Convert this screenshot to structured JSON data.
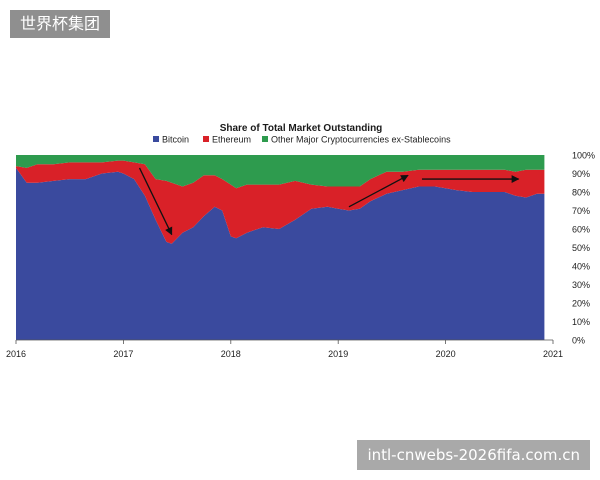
{
  "watermarks": {
    "top": "世界杯集团",
    "bottom": "intl-cnwebs-2026fifa.com.cn"
  },
  "chart_data": {
    "type": "area",
    "title": "Share of Total Market Outstanding",
    "stacked": true,
    "x": [
      2016.0,
      2016.1,
      2016.2,
      2016.35,
      2016.5,
      2016.65,
      2016.8,
      2016.95,
      2017.0,
      2017.1,
      2017.2,
      2017.3,
      2017.4,
      2017.45,
      2017.55,
      2017.65,
      2017.75,
      2017.85,
      2017.92,
      2018.0,
      2018.05,
      2018.15,
      2018.3,
      2018.45,
      2018.6,
      2018.75,
      2018.9,
      2019.0,
      2019.1,
      2019.2,
      2019.3,
      2019.45,
      2019.6,
      2019.75,
      2019.9,
      2020.0,
      2020.1,
      2020.25,
      2020.4,
      2020.55,
      2020.65,
      2020.75,
      2020.85,
      2020.92
    ],
    "series": [
      {
        "name": "Bitcoin",
        "color": "#3a4a9e",
        "values": [
          93,
          85,
          85,
          86,
          87,
          87,
          90,
          91,
          90,
          87,
          78,
          65,
          53,
          52,
          58,
          61,
          67,
          72,
          70,
          56,
          55,
          58,
          61,
          60,
          65,
          71,
          72,
          71,
          70,
          71,
          75,
          79,
          81,
          83,
          83,
          82,
          81,
          80,
          80,
          80,
          78,
          77,
          79,
          79
        ]
      },
      {
        "name": "Ethereum",
        "color": "#d92128",
        "values": [
          1,
          8,
          10,
          9,
          9,
          9,
          6,
          6,
          7,
          9,
          17,
          22,
          33,
          33,
          25,
          24,
          22,
          17,
          17,
          28,
          27,
          26,
          23,
          24,
          21,
          13,
          11,
          12,
          13,
          12,
          12,
          12,
          10,
          9,
          9,
          10,
          11,
          12,
          12,
          12,
          13,
          15,
          13,
          13
        ]
      },
      {
        "name": "Other Major Cryptocurrencies ex-Stablecoins",
        "color": "#2e9b4e",
        "values": [
          6,
          7,
          5,
          5,
          4,
          4,
          4,
          3,
          3,
          4,
          5,
          13,
          14,
          15,
          17,
          15,
          11,
          11,
          13,
          16,
          18,
          16,
          16,
          16,
          14,
          16,
          17,
          17,
          17,
          17,
          13,
          9,
          9,
          8,
          8,
          8,
          8,
          8,
          8,
          8,
          9,
          8,
          8,
          8
        ]
      }
    ],
    "x_ticks": [
      "2016",
      "2017",
      "2018",
      "2019",
      "2020",
      "2021"
    ],
    "x_range": [
      2016,
      2021
    ],
    "y_ticks": [
      "0%",
      "10%",
      "20%",
      "30%",
      "40%",
      "50%",
      "60%",
      "70%",
      "80%",
      "90%",
      "100%"
    ],
    "ylim": [
      0,
      100
    ],
    "legend_position": "top",
    "arrows": [
      {
        "from": [
          2017.15,
          93
        ],
        "to": [
          2017.45,
          57
        ]
      },
      {
        "from": [
          2019.1,
          72
        ],
        "to": [
          2019.65,
          89
        ]
      },
      {
        "from": [
          2019.78,
          87
        ],
        "to": [
          2020.68,
          87
        ]
      }
    ]
  }
}
